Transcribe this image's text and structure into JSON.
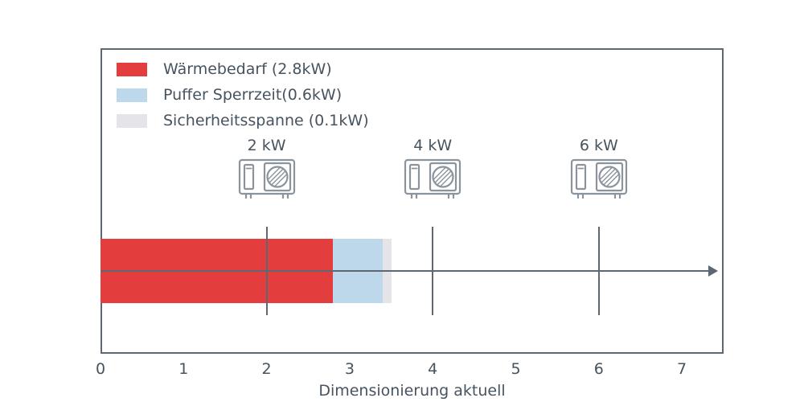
{
  "chart_data": {
    "type": "bar",
    "orientation": "horizontal",
    "stacked": true,
    "title": "",
    "xlabel": "Dimensionierung aktuell",
    "ylabel": "",
    "xlim": [
      0,
      7.5
    ],
    "x_ticks": [
      0,
      1,
      2,
      3,
      4,
      5,
      6,
      7
    ],
    "grid": false,
    "legend_position": "upper-left",
    "series": [
      {
        "name": "Wärmebedarf (2.8kW)",
        "value": 2.8,
        "color": "#e43d3d"
      },
      {
        "name": "Puffer Sperrzeit(0.6kW)",
        "value": 0.6,
        "color": "#bdd8ea"
      },
      {
        "name": "Sicherheitsspanne (0.1kW)",
        "value": 0.1,
        "color": "#e5e5e9"
      }
    ],
    "markers": [
      {
        "label": "2 kW",
        "x": 2,
        "icon": "heat-pump-icon"
      },
      {
        "label": "4 kW",
        "x": 4,
        "icon": "heat-pump-icon"
      },
      {
        "label": "6 kW",
        "x": 6,
        "icon": "heat-pump-icon"
      }
    ]
  },
  "colors": {
    "axis": "#5d6872",
    "text": "#47535e"
  }
}
